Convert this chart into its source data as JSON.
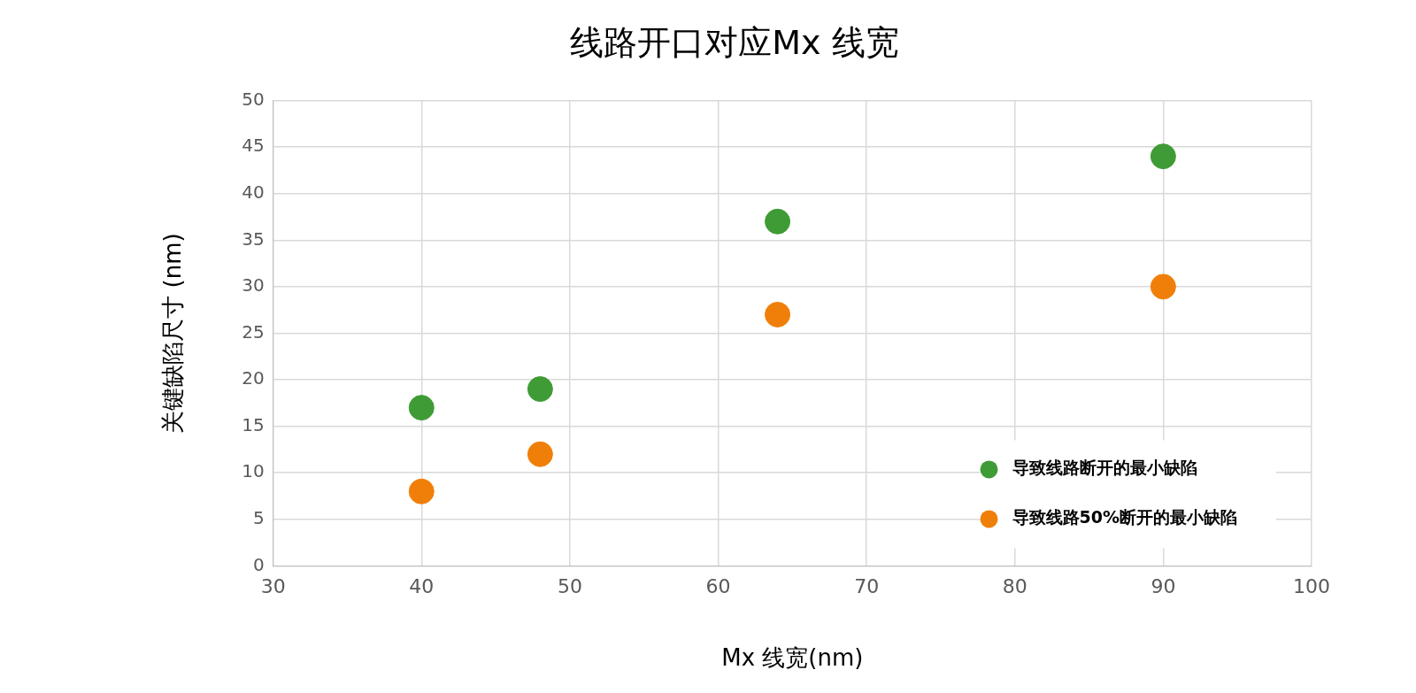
{
  "chart_data": {
    "type": "scatter",
    "title": "线路开口对应Mx 线宽",
    "xlabel": "Mx 线宽(nm)",
    "ylabel": "关键缺陷尺寸 (nm)",
    "series": [
      {
        "name": "导致线路断开的最小缺陷",
        "color": "#3f9b35",
        "x": [
          40,
          48,
          64,
          90
        ],
        "values": [
          17,
          19,
          37,
          44
        ]
      },
      {
        "name": "导致线路50%断开的最小缺陷",
        "color": "#f07f09",
        "x": [
          40,
          48,
          64,
          90
        ],
        "values": [
          8,
          12,
          27,
          30
        ]
      }
    ],
    "xlim": [
      30,
      100
    ],
    "xticks": [
      30,
      40,
      50,
      60,
      70,
      80,
      90,
      100
    ],
    "ylim": [
      0,
      50
    ],
    "yticks": [
      0,
      5,
      10,
      15,
      20,
      25,
      30,
      35,
      40,
      45,
      50
    ],
    "grid": true,
    "legend": "bottom right",
    "marker": "circle"
  }
}
